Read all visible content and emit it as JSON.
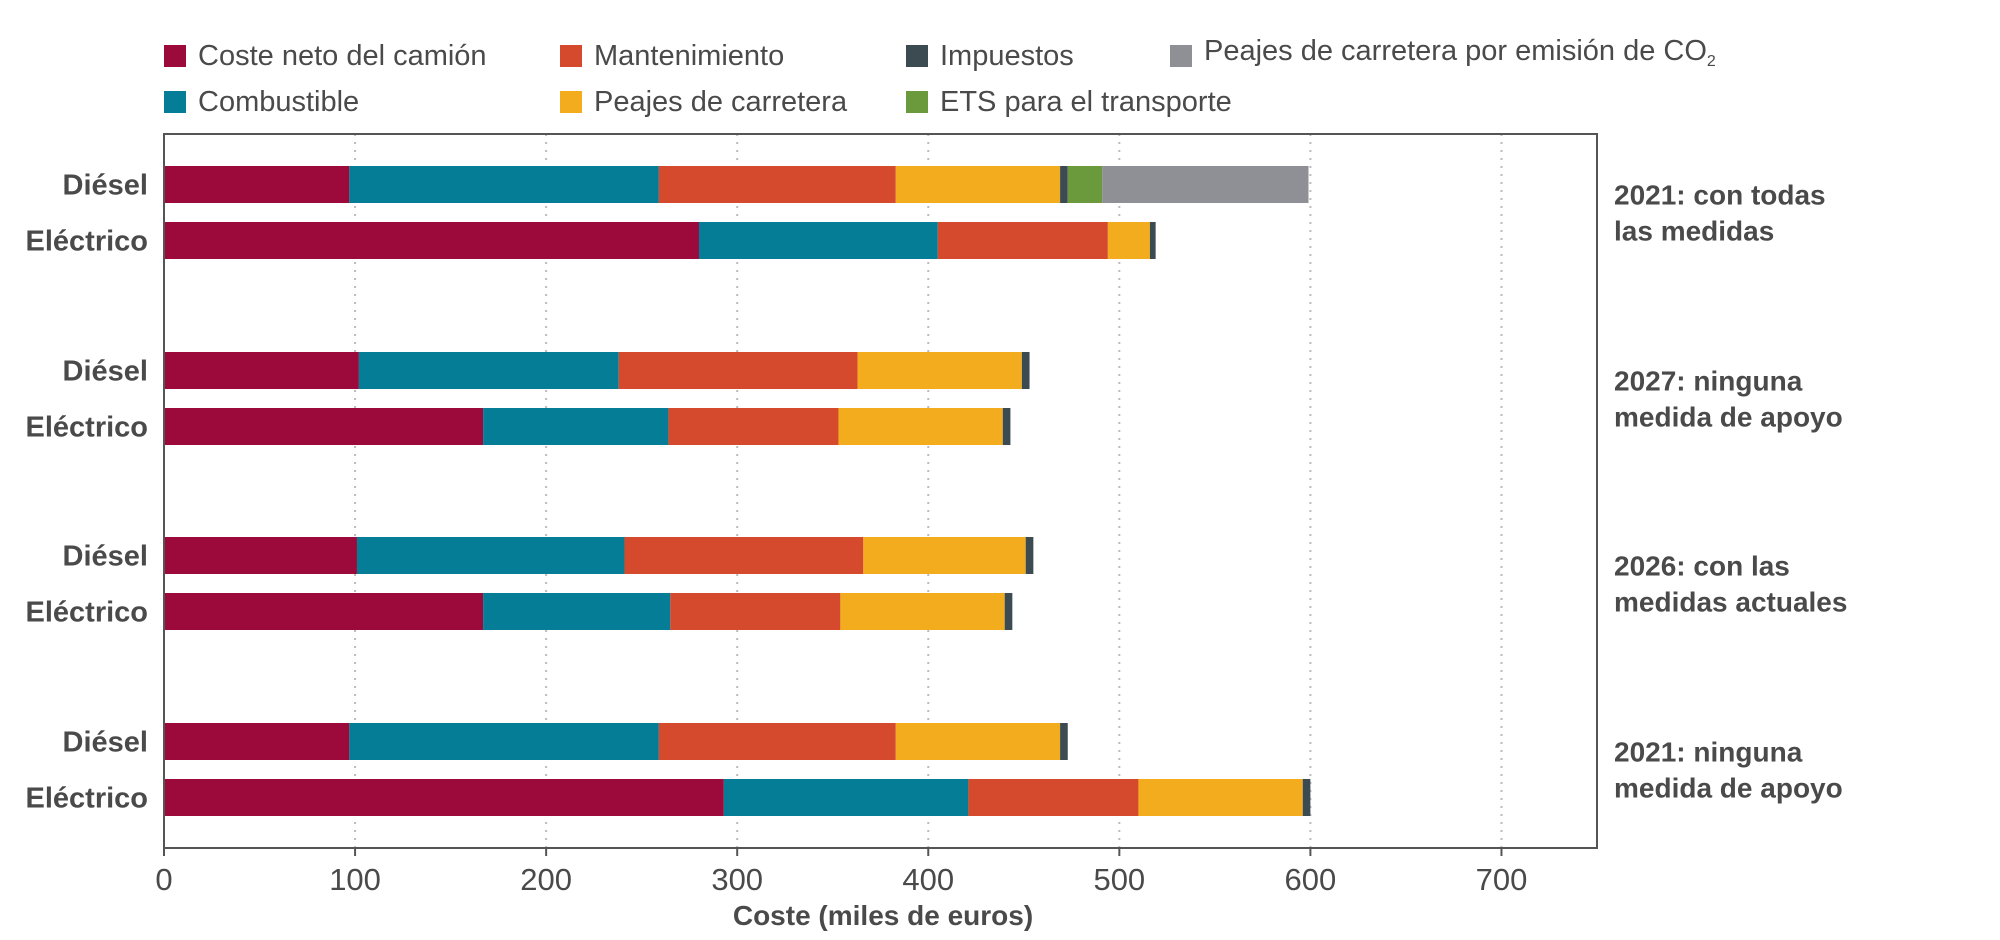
{
  "colors": {
    "coste_neto": "#9b0a3a",
    "combustible": "#057d96",
    "mantenimiento": "#d5492c",
    "peajes": "#f2ac1d",
    "impuestos": "#3c4a52",
    "ets": "#6a9a3b",
    "peajes_co2": "#8f8f96",
    "axis": "#555555",
    "grid": "#bbbbbb"
  },
  "legend": [
    {
      "key": "coste_neto",
      "label": "Coste neto del camión",
      "sub": ""
    },
    {
      "key": "mantenimiento",
      "label": "Mantenimiento",
      "sub": ""
    },
    {
      "key": "impuestos",
      "label": "Impuestos",
      "sub": ""
    },
    {
      "key": "peajes_co2",
      "label": "Peajes de carretera por emisión de CO",
      "sub": "2"
    },
    {
      "key": "combustible",
      "label": "Combustible",
      "sub": ""
    },
    {
      "key": "peajes",
      "label": "Peajes de carretera",
      "sub": ""
    },
    {
      "key": "ets",
      "label": "ETS para el transporte",
      "sub": ""
    }
  ],
  "chart_data": {
    "type": "bar",
    "orientation": "horizontal",
    "stacked": true,
    "xlabel": "Coste (miles de euros)",
    "xlim": [
      0,
      750
    ],
    "xticks": [
      0,
      100,
      200,
      300,
      400,
      500,
      600,
      700
    ],
    "grid": "vertical dotted",
    "legend_position": "top",
    "series_keys": [
      "coste_neto",
      "combustible",
      "mantenimiento",
      "peajes",
      "impuestos",
      "ets",
      "peajes_co2"
    ],
    "series_names": [
      "Coste neto del camión",
      "Combustible",
      "Mantenimiento",
      "Peajes de carretera",
      "Impuestos",
      "ETS para el transporte",
      "Peajes de carretera por emisión de CO2"
    ],
    "groups": [
      {
        "label_lines": [
          "2021: con todas",
          "las medidas"
        ],
        "bars": [
          {
            "label": "Diésel",
            "values": [
              97,
              162,
              124,
              86,
              4,
              18,
              108
            ]
          },
          {
            "label": "Eléctrico",
            "values": [
              280,
              125,
              89,
              22,
              3,
              0,
              0
            ]
          }
        ]
      },
      {
        "label_lines": [
          "2027: ninguna",
          "medida de apoyo"
        ],
        "bars": [
          {
            "label": "Diésel",
            "values": [
              102,
              136,
              125,
              86,
              4,
              0,
              0
            ]
          },
          {
            "label": "Eléctrico",
            "values": [
              167,
              97,
              89,
              86,
              4,
              0,
              0
            ]
          }
        ]
      },
      {
        "label_lines": [
          "2026: con las",
          "medidas actuales"
        ],
        "bars": [
          {
            "label": "Diésel",
            "values": [
              101,
              140,
              125,
              85,
              4,
              0,
              0
            ]
          },
          {
            "label": "Eléctrico",
            "values": [
              167,
              98,
              89,
              86,
              4,
              0,
              0
            ]
          }
        ]
      },
      {
        "label_lines": [
          "2021: ninguna",
          "medida de apoyo"
        ],
        "bars": [
          {
            "label": "Diésel",
            "values": [
              97,
              162,
              124,
              86,
              4,
              0,
              0
            ]
          },
          {
            "label": "Eléctrico",
            "values": [
              293,
              128,
              89,
              86,
              4,
              0,
              0
            ]
          }
        ]
      }
    ]
  }
}
